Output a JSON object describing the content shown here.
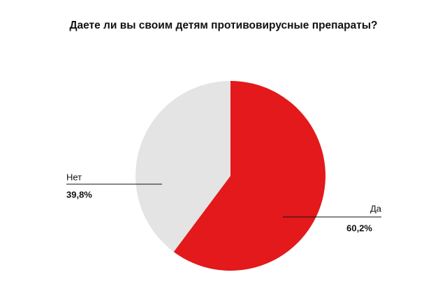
{
  "chart_data": {
    "type": "pie",
    "title": "Даете ли вы своим детям противовирусные препараты?",
    "categories": [
      "Да",
      "Нет"
    ],
    "values": [
      60.2,
      39.8
    ],
    "value_labels": [
      "60,2%",
      "39,8%"
    ],
    "colors": [
      "#e3191b",
      "#e4e4e4"
    ]
  }
}
